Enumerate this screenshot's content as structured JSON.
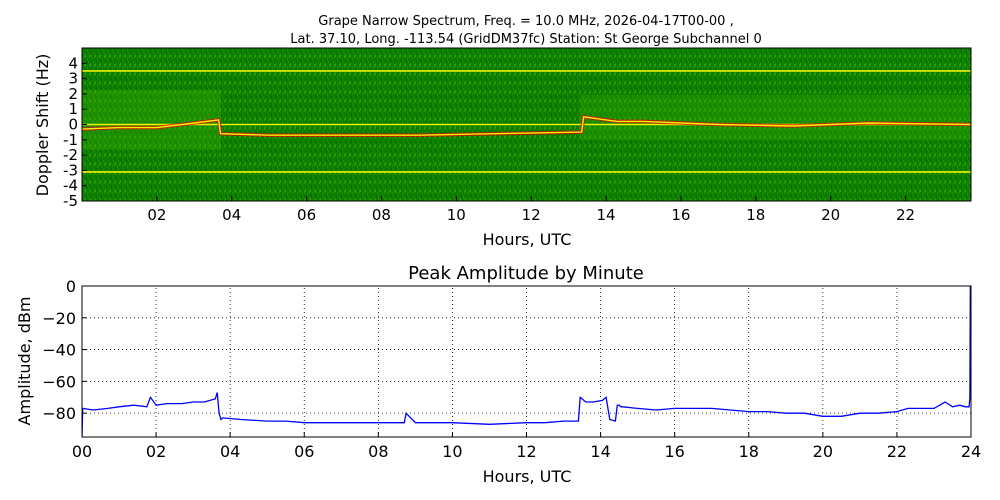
{
  "figure": {
    "title_line1": "Grape Narrow Spectrum, Freq. = 10.0 MHz, 2026-04-17T00-00 ,",
    "title_line2": "Lat.  37.10, Long. -113.54 (GridDM37fc) Station: St George Subchannel 0"
  },
  "chart_data": [
    {
      "type": "heatmap",
      "title": "",
      "xlabel": "Hours, UTC",
      "ylabel": "Doppler Shift (Hz)",
      "xlim": [
        0,
        23.75
      ],
      "ylim": [
        -5,
        5
      ],
      "xticks": [
        "02",
        "04",
        "06",
        "08",
        "10",
        "12",
        "14",
        "16",
        "18",
        "20",
        "22"
      ],
      "xtick_values": [
        2,
        4,
        6,
        8,
        10,
        12,
        14,
        16,
        18,
        20,
        22
      ],
      "yticks": [
        "4",
        "3",
        "2",
        "1",
        "0",
        "-1",
        "-2",
        "-3",
        "-4",
        "-5"
      ],
      "ytick_values": [
        4,
        3,
        2,
        1,
        0,
        -1,
        -2,
        -3,
        -4,
        -5
      ],
      "colormap": [
        "#003f00",
        "#118f00",
        "#f2f200",
        "#e80000"
      ],
      "features": {
        "carrier_doppler_hz": [
          [
            0,
            -0.3
          ],
          [
            1,
            -0.2
          ],
          [
            2,
            -0.2
          ],
          [
            3,
            0.1
          ],
          [
            3.65,
            0.3
          ],
          [
            3.7,
            -0.6
          ],
          [
            5,
            -0.7
          ],
          [
            7,
            -0.7
          ],
          [
            9,
            -0.7
          ],
          [
            11,
            -0.6
          ],
          [
            13.35,
            -0.5
          ],
          [
            13.4,
            0.5
          ],
          [
            14,
            0.3
          ],
          [
            14.3,
            0.2
          ],
          [
            15,
            0.2
          ],
          [
            17,
            0.0
          ],
          [
            19,
            -0.1
          ],
          [
            21,
            0.1
          ],
          [
            23.75,
            0.0
          ]
        ],
        "reference_lines_hz": [
          3.5,
          0.0,
          -3.1
        ]
      }
    },
    {
      "type": "line",
      "title": "Peak Amplitude by Minute",
      "xlabel": "Hours, UTC",
      "ylabel": "Amplitude, dBm",
      "xlim": [
        0,
        24
      ],
      "ylim": [
        -95,
        0
      ],
      "grid": true,
      "xticks": [
        "00",
        "02",
        "04",
        "06",
        "08",
        "10",
        "12",
        "14",
        "16",
        "18",
        "20",
        "22",
        "24"
      ],
      "xtick_values": [
        0,
        2,
        4,
        6,
        8,
        10,
        12,
        14,
        16,
        18,
        20,
        22,
        24
      ],
      "yticks": [
        "0",
        "−20",
        "−40",
        "−60",
        "−80"
      ],
      "ytick_values": [
        0,
        -20,
        -40,
        -60,
        -80
      ],
      "series": [
        {
          "color": "#0000ff",
          "x": [
            0,
            0.02,
            0.3,
            0.7,
            1.0,
            1.4,
            1.75,
            1.85,
            2.0,
            2.3,
            2.7,
            3.0,
            3.3,
            3.6,
            3.65,
            3.7,
            3.75,
            3.8,
            4.3,
            5.0,
            5.5,
            6.0,
            7.0,
            8.0,
            8.7,
            8.75,
            9.0,
            10.0,
            11.0,
            12.0,
            12.5,
            13.0,
            13.4,
            13.45,
            13.6,
            13.8,
            14.05,
            14.15,
            14.25,
            14.4,
            14.45,
            14.5,
            14.55,
            14.6,
            15.0,
            15.5,
            16.0,
            16.5,
            17.0,
            17.5,
            18.0,
            18.5,
            19.0,
            19.5,
            20.0,
            20.5,
            21.0,
            21.5,
            22.0,
            22.3,
            22.6,
            23.0,
            23.3,
            23.5,
            23.7,
            23.85,
            23.95,
            23.97,
            23.98,
            24.0
          ],
          "values": [
            -95,
            -77,
            -78,
            -77,
            -76,
            -75,
            -76,
            -70,
            -75,
            -74,
            -74,
            -73,
            -73,
            -71,
            -67,
            -80,
            -84,
            -83,
            -84,
            -85,
            -85,
            -86,
            -86,
            -86,
            -86,
            -80,
            -86,
            -86,
            -87,
            -86,
            -86,
            -85,
            -85,
            -70,
            -73,
            -73,
            -72,
            -70,
            -84,
            -85,
            -75,
            -75,
            -76,
            -76,
            -77,
            -78,
            -77,
            -77,
            -77,
            -78,
            -79,
            -79,
            -80,
            -80,
            -82,
            -82,
            -80,
            -80,
            -79,
            -77,
            -77,
            -77,
            -73,
            -76,
            -75,
            -76,
            -76,
            -70,
            0,
            0
          ]
        }
      ]
    }
  ]
}
